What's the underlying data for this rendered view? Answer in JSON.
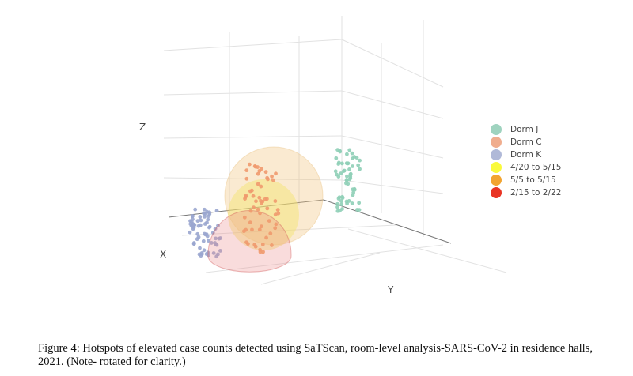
{
  "chart_data": {
    "type": "scatter",
    "projection": "3d",
    "axes": {
      "x_label": "X",
      "y_label": "Y",
      "z_label": "Z"
    },
    "grid": true,
    "legend_position": "right",
    "series": [
      {
        "name": "Dorm J",
        "color": "#8fcfb7",
        "n_points": 60
      },
      {
        "name": "Dorm C",
        "color": "#ef9a6e",
        "n_points": 60
      },
      {
        "name": "Dorm K",
        "color": "#9aa6cf",
        "n_points": 70
      }
    ],
    "clusters": [
      {
        "name": "4/20 to 5/15",
        "color": "#f5e94a",
        "shape": "sphere"
      },
      {
        "name": "5/5 to 5/15",
        "color": "#f0a234",
        "shape": "sphere"
      },
      {
        "name": "2/15 to 2/22",
        "color": "#e8352a",
        "shape": "hemisphere"
      }
    ]
  },
  "legend": [
    {
      "label": "Dorm J",
      "color": "#9fd3bf"
    },
    {
      "label": "Dorm C",
      "color": "#f0ad8e"
    },
    {
      "label": "Dorm K",
      "color": "#b0b9d8"
    },
    {
      "label": "4/20 to 5/15",
      "color": "#fafa3c"
    },
    {
      "label": "5/5 to 5/15",
      "color": "#f2a430"
    },
    {
      "label": "2/15 to 2/22",
      "color": "#e93424"
    }
  ],
  "caption": "Figure 4: Hotspots of elevated case counts detected using SaTScan, room-level analysis-SARS-CoV-2 in residence halls, 2021. (Note- rotated for clarity.)"
}
